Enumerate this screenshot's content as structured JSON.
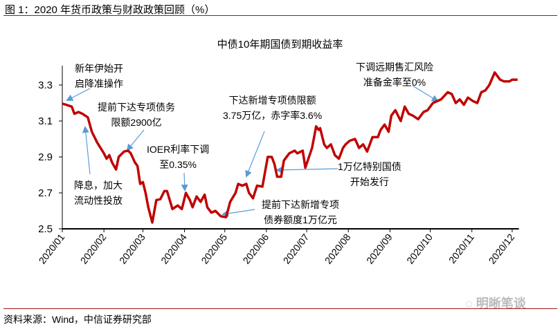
{
  "figure_title": "图 1：2020 年货币政策与财政政策回顾（%）",
  "source": "资料来源：Wind，中信证券研究部",
  "watermark": "明晰笔谈",
  "colors": {
    "line": "#c00000",
    "arrow": "#5b9bd5",
    "rule": "#a31515"
  },
  "chart_data": {
    "type": "line",
    "title": "中债10年期国债到期收益率",
    "xlabel": "",
    "ylabel": "",
    "ylim": [
      2.5,
      3.4
    ],
    "xlim_days": [
      0,
      340
    ],
    "yticks": [
      "2.5",
      "2.7",
      "2.9",
      "3.1",
      "3.3"
    ],
    "ytick_values": [
      2.5,
      2.7,
      2.9,
      3.1,
      3.3
    ],
    "xticks": [
      "2020/01",
      "2020/02",
      "2020/03",
      "2020/04",
      "2020/05",
      "2020/06",
      "2020/07",
      "2020/08",
      "2020/09",
      "2020/10",
      "2020/11",
      "2020/12"
    ],
    "xtick_days": [
      0,
      31,
      60,
      91,
      121,
      152,
      182,
      213,
      244,
      274,
      305,
      335
    ],
    "grid": false,
    "series": [
      {
        "name": "中债10年期国债到期收益率",
        "x_day_of_year": [
          0,
          3,
          7,
          9,
          12,
          15,
          19,
          22,
          26,
          31,
          33,
          35,
          37,
          40,
          42,
          46,
          49,
          51,
          54,
          56,
          58,
          60,
          62,
          64,
          67,
          70,
          73,
          76,
          78,
          80,
          82,
          86,
          89,
          92,
          95,
          97,
          100,
          103,
          106,
          108,
          111,
          114,
          118,
          122,
          125,
          129,
          131,
          134,
          137,
          139,
          142,
          145,
          149,
          153,
          156,
          158,
          160,
          163,
          165,
          169,
          173,
          175,
          179,
          181,
          186,
          189,
          191,
          192,
          195,
          197,
          200,
          203,
          206,
          209,
          211,
          214,
          218,
          221,
          224,
          227,
          231,
          235,
          237,
          240,
          243,
          245,
          248,
          252,
          255,
          258,
          261,
          265,
          269,
          272,
          276,
          279,
          282,
          287,
          290,
          293,
          296,
          299,
          302,
          306,
          309,
          312,
          315,
          318,
          322,
          326,
          329,
          333,
          335,
          339
        ],
        "values": [
          3.196,
          3.19,
          3.18,
          3.14,
          3.15,
          3.14,
          3.12,
          3.04,
          2.98,
          2.92,
          2.89,
          2.91,
          2.87,
          2.83,
          2.9,
          2.93,
          2.935,
          2.92,
          2.87,
          2.85,
          2.75,
          2.76,
          2.7,
          2.62,
          2.535,
          2.66,
          2.665,
          2.71,
          2.71,
          2.66,
          2.61,
          2.63,
          2.61,
          2.7,
          2.66,
          2.62,
          2.68,
          2.65,
          2.69,
          2.62,
          2.59,
          2.6,
          2.57,
          2.565,
          2.65,
          2.7,
          2.75,
          2.74,
          2.75,
          2.7,
          2.67,
          2.74,
          2.735,
          2.9,
          2.9,
          2.86,
          2.79,
          2.79,
          2.88,
          2.92,
          2.935,
          2.92,
          2.935,
          2.84,
          2.95,
          3.07,
          3.05,
          3.06,
          2.97,
          2.95,
          2.97,
          2.91,
          2.89,
          2.95,
          2.97,
          2.99,
          3.0,
          2.95,
          2.97,
          2.93,
          3.01,
          3.01,
          3.05,
          3.08,
          3.04,
          3.13,
          3.16,
          3.1,
          3.18,
          3.14,
          3.13,
          3.11,
          3.15,
          3.16,
          3.2,
          3.21,
          3.22,
          3.26,
          3.25,
          3.2,
          3.22,
          3.19,
          3.23,
          3.21,
          3.2,
          3.26,
          3.27,
          3.3,
          3.37,
          3.33,
          3.32,
          3.32,
          3.33,
          3.33
        ]
      }
    ],
    "annotations": [
      {
        "lines": [
          "新年伊始开",
          "启降准操作"
        ]
      },
      {
        "lines": [
          "提前下达专项债务",
          "限额2900亿"
        ]
      },
      {
        "lines": [
          "降息，加大",
          "流动性投放"
        ]
      },
      {
        "lines": [
          "IOER利率下调",
          "至0.35%"
        ]
      },
      {
        "lines": [
          "下达新增专项债限额",
          "3.75万亿，赤字率3.6%"
        ]
      },
      {
        "lines": [
          "提前下达新增专项",
          "债券额度1万亿元"
        ]
      },
      {
        "lines": [
          "1万亿特别国债",
          "开始发行"
        ]
      },
      {
        "lines": [
          "下调远期售汇风险",
          "准备金率至0%"
        ]
      }
    ]
  }
}
